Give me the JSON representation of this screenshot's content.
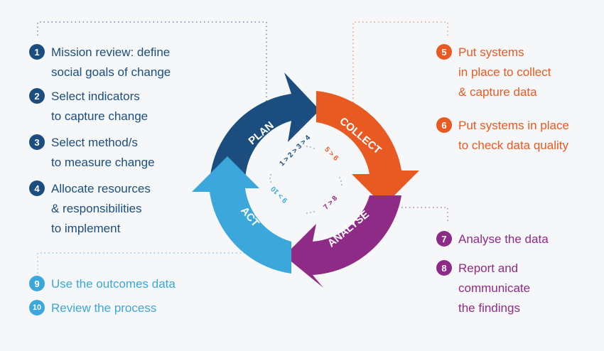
{
  "colors": {
    "plan": "#1b4e7e",
    "collect": "#e85a22",
    "analyse": "#8e2b86",
    "act": "#3ba7db"
  },
  "cycle": {
    "plan": "PLAN",
    "collect": "COLLECT",
    "analyse": "ANALYSE",
    "act": "ACT",
    "inner_plan": "1 > 2 > 3 > 4",
    "inner_collect": "5 > 6",
    "inner_analyse": "7 > 8",
    "inner_act": "9 > 10"
  },
  "steps": [
    {
      "num": "1",
      "text": "Mission review: define\nsocial goals of change"
    },
    {
      "num": "2",
      "text": "Select indicators\nto capture change"
    },
    {
      "num": "3",
      "text": "Select method/s\nto measure change"
    },
    {
      "num": "4",
      "text": "Allocate resources\n& responsibilities\nto implement"
    },
    {
      "num": "5",
      "text": "Put systems\nin place to collect\n& capture data"
    },
    {
      "num": "6",
      "text": "Put systems in place\nto check data quality"
    },
    {
      "num": "7",
      "text": "Analyse the data"
    },
    {
      "num": "8",
      "text": "Report and\ncommunicate\nthe findings"
    },
    {
      "num": "9",
      "text": "Use the outcomes data"
    },
    {
      "num": "10",
      "text": "Review the process"
    }
  ]
}
